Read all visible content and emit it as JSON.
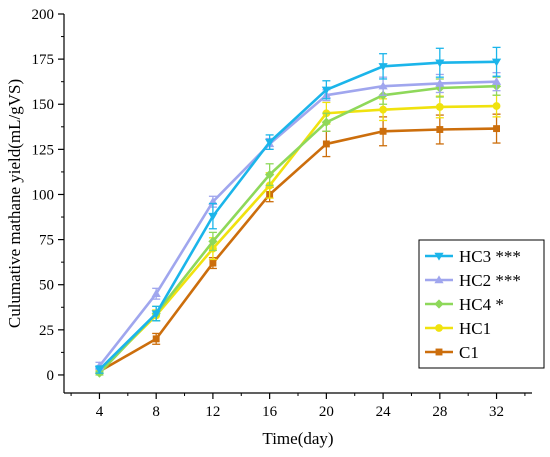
{
  "chart_data": {
    "type": "line",
    "title": "",
    "xlabel": "Time(day)",
    "ylabel": "Culumative mathane yield(mL/gVS)",
    "x": [
      4,
      8,
      12,
      16,
      20,
      24,
      28,
      32
    ],
    "xlim": [
      1.5,
      34.5
    ],
    "ylim": [
      -10,
      200
    ],
    "xticks": [
      4,
      8,
      12,
      16,
      20,
      24,
      28,
      32
    ],
    "yticks": [
      0,
      25,
      50,
      75,
      100,
      125,
      150,
      175,
      200
    ],
    "grid": false,
    "legend_position": "bottom-right",
    "series": [
      {
        "name": "HC3 ***",
        "color": "#1bb5ea",
        "marker": "triangle-down",
        "values": [
          3,
          34,
          88,
          129,
          158,
          171,
          173,
          173.5
        ],
        "errors": [
          2,
          4,
          7,
          4,
          5,
          7,
          8,
          8
        ]
      },
      {
        "name": "HC2 ***",
        "color": "#a0a6ee",
        "marker": "triangle-up",
        "values": [
          5,
          45,
          96,
          128,
          155,
          160,
          161.5,
          162.5
        ],
        "errors": [
          2,
          3,
          3,
          3,
          3,
          5,
          5,
          5
        ]
      },
      {
        "name": "HC4 *",
        "color": "#8ed85a",
        "marker": "diamond",
        "values": [
          1,
          34,
          74,
          111,
          140,
          155,
          159,
          160
        ],
        "errors": [
          1,
          4,
          5,
          6,
          5,
          5,
          5,
          5
        ]
      },
      {
        "name": "HC1",
        "color": "#f0e20e",
        "marker": "circle",
        "values": [
          2,
          33,
          70,
          105,
          145,
          147,
          148.5,
          149
        ],
        "errors": [
          1,
          3,
          6,
          7,
          6,
          6,
          6,
          6
        ]
      },
      {
        "name": "C1",
        "color": "#cc6e0c",
        "marker": "square",
        "values": [
          2,
          20,
          62,
          100,
          128,
          135,
          136,
          136.5
        ],
        "errors": [
          1,
          3,
          3,
          4,
          7,
          8,
          8,
          8
        ]
      }
    ]
  }
}
